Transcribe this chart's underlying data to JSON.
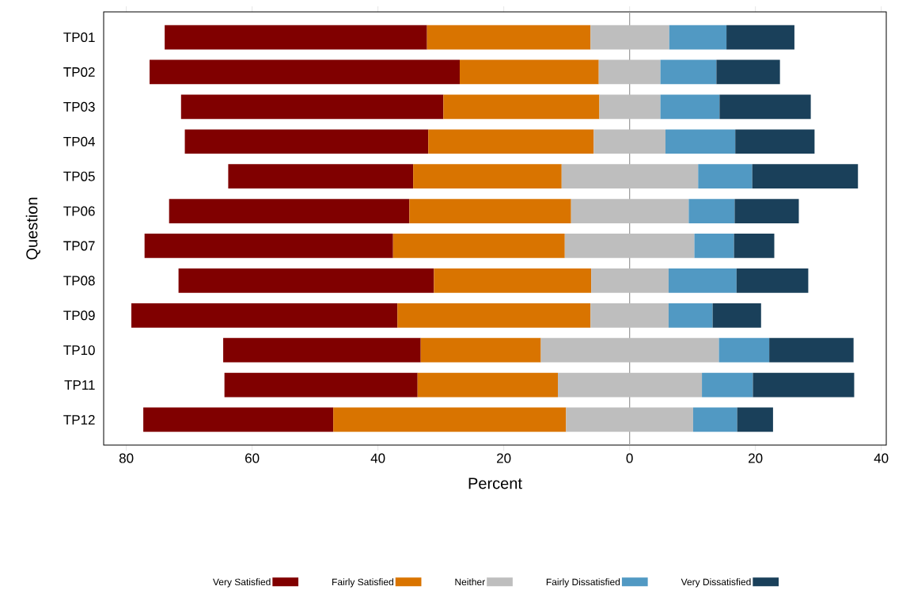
{
  "chart_data": {
    "type": "bar",
    "orientation": "horizontal",
    "xlabel": "Percent",
    "ylabel": "Question",
    "categories": [
      "TP01",
      "TP02",
      "TP03",
      "TP04",
      "TP05",
      "TP06",
      "TP07",
      "TP08",
      "TP09",
      "TP10",
      "TP11",
      "TP12"
    ],
    "series": [
      {
        "name": "Very Satisfied",
        "color": "#800000",
        "base": [
          -73.9,
          -76.3,
          -71.3,
          -70.7,
          -63.8,
          -73.2,
          -77.1,
          -71.7,
          -79.2,
          -64.6,
          -64.4,
          -77.3
        ],
        "values": [
          41.7,
          49.3,
          41.7,
          38.7,
          29.4,
          38.2,
          39.5,
          40.6,
          42.3,
          31.4,
          30.7,
          30.2
        ]
      },
      {
        "name": "Fairly Satisfied",
        "color": "#d97400",
        "base": [
          -32.2,
          -27.0,
          -29.6,
          -32.0,
          -34.4,
          -35.0,
          -37.6,
          -31.1,
          -36.9,
          -33.2,
          -33.7,
          -47.1
        ],
        "values": [
          26.0,
          22.1,
          24.8,
          26.3,
          23.6,
          25.7,
          27.3,
          25.0,
          30.7,
          19.1,
          22.3,
          37.0
        ]
      },
      {
        "name": "Neither",
        "color": "#bebebe",
        "base": [
          -6.2,
          -4.9,
          -4.8,
          -5.7,
          -10.8,
          -9.3,
          -10.3,
          -6.1,
          -6.2,
          -14.1,
          -11.4,
          -10.1
        ],
        "values": [
          12.5,
          9.8,
          9.7,
          11.4,
          21.7,
          18.7,
          20.6,
          12.3,
          12.4,
          28.3,
          22.9,
          20.2
        ]
      },
      {
        "name": "Fairly Dissatisfied",
        "color": "#5199c3",
        "base": [
          6.3,
          4.9,
          4.9,
          5.7,
          10.9,
          9.4,
          10.3,
          6.2,
          6.2,
          14.2,
          11.5,
          10.1
        ],
        "values": [
          9.1,
          8.9,
          9.4,
          11.1,
          8.6,
          7.3,
          6.3,
          10.8,
          7.0,
          8.0,
          8.1,
          7.0
        ]
      },
      {
        "name": "Very Dissatisfied",
        "color": "#1a405a",
        "base": [
          15.4,
          13.8,
          14.3,
          16.8,
          19.5,
          16.7,
          16.6,
          17.0,
          13.2,
          22.2,
          19.6,
          17.1
        ],
        "values": [
          10.8,
          10.1,
          14.5,
          12.6,
          16.8,
          10.2,
          6.4,
          11.4,
          7.7,
          13.4,
          16.1,
          5.7
        ]
      }
    ],
    "xlim": [
      -83.6,
      40.8
    ],
    "xticks": [
      {
        "value": -80,
        "label": "80"
      },
      {
        "value": -60,
        "label": "60"
      },
      {
        "value": -40,
        "label": "40"
      },
      {
        "value": -20,
        "label": "20"
      },
      0,
      20,
      40
    ],
    "ref_lines": [
      {
        "axis": "x",
        "value": 0,
        "color": "#a0a0a0"
      }
    ],
    "legend": "bottom",
    "grid": false
  }
}
